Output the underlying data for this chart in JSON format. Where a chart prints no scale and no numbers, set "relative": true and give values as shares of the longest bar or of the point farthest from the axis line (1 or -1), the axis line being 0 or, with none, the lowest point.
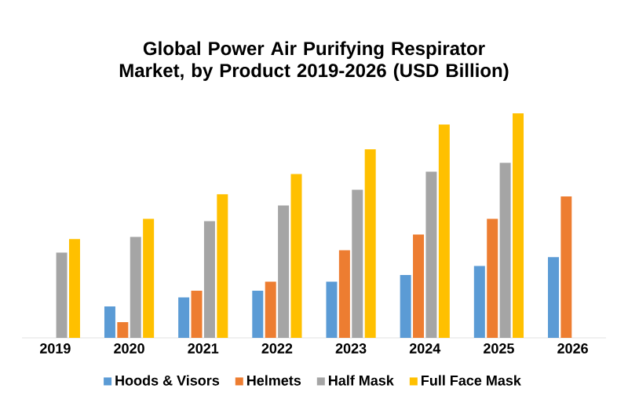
{
  "chart_data": {
    "type": "bar",
    "relative": true,
    "title": "Global Power Air Purifying Respirator Market, by Product 2019-2026 (USD Billion)",
    "categories": [
      "2019",
      "2020",
      "2021",
      "2022",
      "2023",
      "2024",
      "2025",
      "2026"
    ],
    "series": [
      {
        "name": "Hoods & Visors",
        "color": "#5b9bd5",
        "values": [
          null,
          0.14,
          0.18,
          0.21,
          0.25,
          0.28,
          0.32,
          0.36
        ]
      },
      {
        "name": "Helmets",
        "color": "#ed7d31",
        "values": [
          null,
          0.07,
          0.21,
          0.25,
          0.39,
          0.46,
          0.53,
          0.63
        ]
      },
      {
        "name": "Half Mask",
        "color": "#a5a5a5",
        "values": [
          0.38,
          0.45,
          0.52,
          0.59,
          0.66,
          0.74,
          0.78,
          null
        ]
      },
      {
        "name": "Full Face Mask",
        "color": "#ffc000",
        "values": [
          0.44,
          0.53,
          0.64,
          0.73,
          0.84,
          0.95,
          1,
          null
        ]
      }
    ],
    "legend": "bottom"
  }
}
